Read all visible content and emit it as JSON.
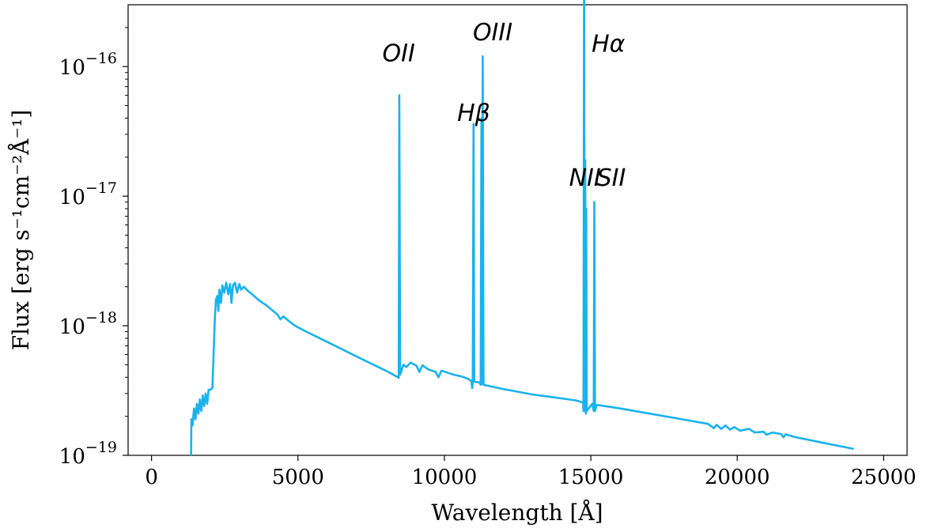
{
  "chart_data": {
    "type": "line",
    "title": "",
    "xlabel": "Wavelength [Å]",
    "ylabel": "Flux [erg s⁻¹cm⁻²Å⁻¹]",
    "xlim": [
      -800,
      25800
    ],
    "ylim": [
      1e-19,
      3e-16
    ],
    "yscale": "log",
    "grid": false,
    "line_color": "#1ab2ec",
    "x_ticks": [
      {
        "value": 0,
        "label": "0"
      },
      {
        "value": 5000,
        "label": "5000"
      },
      {
        "value": 10000,
        "label": "10000"
      },
      {
        "value": 15000,
        "label": "15000"
      },
      {
        "value": 20000,
        "label": "20000"
      },
      {
        "value": 25000,
        "label": "25000"
      }
    ],
    "y_ticks": [
      {
        "value": 1e-19,
        "base": "10",
        "exp": "−19"
      },
      {
        "value": 1e-18,
        "base": "10",
        "exp": "−18"
      },
      {
        "value": 1e-17,
        "base": "10",
        "exp": "−17"
      },
      {
        "value": 1e-16,
        "base": "10",
        "exp": "−16"
      }
    ],
    "annotations": [
      {
        "text": "OII",
        "x": 8440,
        "y": 1.1e-16
      },
      {
        "text": "Hβ",
        "x": 11000,
        "y": 3.8e-17
      },
      {
        "text": "OIII",
        "x": 11650,
        "y": 1.6e-16
      },
      {
        "text": "Hα",
        "x": 15600,
        "y": 1.3e-16
      },
      {
        "text": "NII",
        "x": 14800,
        "y": 1.2e-17
      },
      {
        "text": "SII",
        "x": 15700,
        "y": 1.2e-17
      }
    ],
    "series": [
      {
        "values": [
          [
            1350,
            1e-19
          ],
          [
            1360,
            1.9e-19
          ],
          [
            1400,
            1.7e-19
          ],
          [
            1450,
            2.3e-19
          ],
          [
            1500,
            1.9e-19
          ],
          [
            1550,
            2.5e-19
          ],
          [
            1600,
            2.1e-19
          ],
          [
            1650,
            2.7e-19
          ],
          [
            1700,
            2.2e-19
          ],
          [
            1750,
            2.9e-19
          ],
          [
            1800,
            2.4e-19
          ],
          [
            1850,
            3e-19
          ],
          [
            1900,
            2.5e-19
          ],
          [
            1950,
            3.2e-19
          ],
          [
            2000,
            3.2e-19
          ],
          [
            2080,
            3.3e-19
          ],
          [
            2120,
            6e-19
          ],
          [
            2160,
            1.1e-18
          ],
          [
            2200,
            1.6e-18
          ],
          [
            2250,
            1.7e-18
          ],
          [
            2280,
            1.3e-18
          ],
          [
            2320,
            1.9e-18
          ],
          [
            2370,
            1.5e-18
          ],
          [
            2420,
            2.05e-18
          ],
          [
            2480,
            1.8e-18
          ],
          [
            2550,
            2.15e-18
          ],
          [
            2620,
            1.75e-18
          ],
          [
            2680,
            2.1e-18
          ],
          [
            2730,
            1.5e-18
          ],
          [
            2780,
            2.05e-18
          ],
          [
            2850,
            2.15e-18
          ],
          [
            2920,
            1.8e-18
          ],
          [
            3000,
            2.1e-18
          ],
          [
            3060,
            1.9e-18
          ],
          [
            3150,
            2e-18
          ],
          [
            3300,
            1.85e-18
          ],
          [
            3500,
            1.7e-18
          ],
          [
            3700,
            1.55e-18
          ],
          [
            3900,
            1.45e-18
          ],
          [
            4100,
            1.33e-18
          ],
          [
            4300,
            1.22e-18
          ],
          [
            4400,
            1.12e-18
          ],
          [
            4500,
            1.18e-18
          ],
          [
            4700,
            1.08e-18
          ],
          [
            4900,
            1e-18
          ],
          [
            5200,
            9.2e-19
          ],
          [
            5600,
            8.3e-19
          ],
          [
            6000,
            7.5e-19
          ],
          [
            6500,
            6.6e-19
          ],
          [
            7000,
            5.8e-19
          ],
          [
            7500,
            5.1e-19
          ],
          [
            8000,
            4.5e-19
          ],
          [
            8420,
            4e-19
          ],
          [
            8440,
            3.95e-19
          ],
          [
            8460,
            6e-17
          ],
          [
            8490,
            4.2e-19
          ],
          [
            8600,
            5e-19
          ],
          [
            8700,
            4.8e-19
          ],
          [
            8850,
            5.2e-19
          ],
          [
            9050,
            4.9e-19
          ],
          [
            9150,
            4.4e-19
          ],
          [
            9250,
            4.95e-19
          ],
          [
            9450,
            4.6e-19
          ],
          [
            9700,
            4.4e-19
          ],
          [
            9800,
            4e-19
          ],
          [
            9900,
            4.5e-19
          ],
          [
            10100,
            4.35e-19
          ],
          [
            10300,
            4.2e-19
          ],
          [
            10600,
            4.05e-19
          ],
          [
            10800,
            3.9e-19
          ],
          [
            10920,
            3.75e-19
          ],
          [
            10950,
            3.3e-19
          ],
          [
            10970,
            3.7e-19
          ],
          [
            10995,
            3.6e-17
          ],
          [
            11020,
            3.7e-19
          ],
          [
            11200,
            3.65e-19
          ],
          [
            11240,
            3.5e-19
          ],
          [
            11265,
            4e-17
          ],
          [
            11290,
            3.55e-19
          ],
          [
            11310,
            1.2e-16
          ],
          [
            11335,
            3.5e-19
          ],
          [
            11600,
            3.4e-19
          ],
          [
            12000,
            3.25e-19
          ],
          [
            12500,
            3.1e-19
          ],
          [
            13000,
            2.95e-19
          ],
          [
            13500,
            2.85e-19
          ],
          [
            14000,
            2.75e-19
          ],
          [
            14500,
            2.65e-19
          ],
          [
            14740,
            2.55e-19
          ],
          [
            14750,
            2.2e-19
          ],
          [
            14770,
            8.5e-16
          ],
          [
            14790,
            2.2e-19
          ],
          [
            14810,
            1.9e-17
          ],
          [
            14830,
            2.1e-19
          ],
          [
            14845,
            8e-18
          ],
          [
            14860,
            2.2e-19
          ],
          [
            15050,
            2.5e-19
          ],
          [
            15100,
            2.2e-19
          ],
          [
            15120,
            9e-18
          ],
          [
            15145,
            2.2e-19
          ],
          [
            15200,
            2.45e-19
          ],
          [
            16000,
            2.3e-19
          ],
          [
            17000,
            2.1e-19
          ],
          [
            18000,
            1.92e-19
          ],
          [
            19000,
            1.75e-19
          ],
          [
            19200,
            1.62e-19
          ],
          [
            19300,
            1.72e-19
          ],
          [
            19450,
            1.6e-19
          ],
          [
            19600,
            1.7e-19
          ],
          [
            19750,
            1.58e-19
          ],
          [
            19900,
            1.65e-19
          ],
          [
            20100,
            1.55e-19
          ],
          [
            20400,
            1.6e-19
          ],
          [
            20600,
            1.5e-19
          ],
          [
            20900,
            1.52e-19
          ],
          [
            21000,
            1.44e-19
          ],
          [
            21200,
            1.5e-19
          ],
          [
            21500,
            1.46e-19
          ],
          [
            21580,
            1.38e-19
          ],
          [
            21650,
            1.45e-19
          ],
          [
            22000,
            1.38e-19
          ],
          [
            23000,
            1.24e-19
          ],
          [
            23980,
            1.12e-19
          ]
        ]
      }
    ]
  }
}
